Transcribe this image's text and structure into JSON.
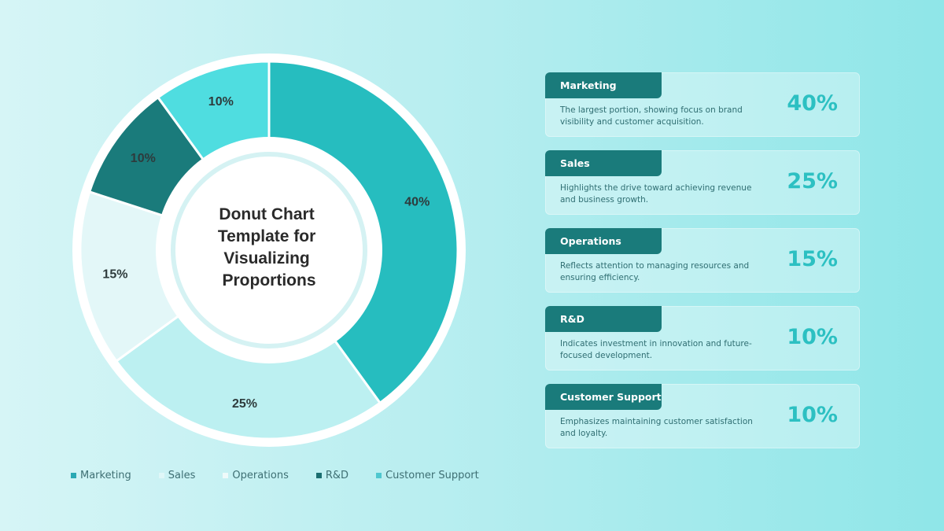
{
  "chart_data": {
    "type": "pie",
    "title": "Donut Chart Template for Visualizing Proportions",
    "title_lines": [
      "Donut Chart",
      "Template for",
      "Visualizing",
      "Proportions"
    ],
    "categories": [
      "Marketing",
      "Sales",
      "Operations",
      "R&D",
      "Customer Support"
    ],
    "values": [
      40,
      25,
      15,
      10,
      10
    ],
    "data_labels": [
      "40%",
      "25%",
      "15%",
      "10%",
      "10%"
    ],
    "colors": [
      "#26bdbf",
      "#bcf0f1",
      "#e3f7f8",
      "#1a7b7b",
      "#4fdde0"
    ],
    "donut": true,
    "legend": "bottom"
  },
  "legend": {
    "items": [
      {
        "label": "Marketing",
        "color": "#2aa9b3"
      },
      {
        "label": "Sales",
        "color": "#dff7f8"
      },
      {
        "label": "Operations",
        "color": "#eefafa"
      },
      {
        "label": "R&D",
        "color": "#1a6e70"
      },
      {
        "label": "Customer Support",
        "color": "#4fc7cf"
      }
    ]
  },
  "cards": [
    {
      "title": "Marketing",
      "description": "The largest portion, showing focus on brand visibility and customer acquisition.",
      "value": "40%"
    },
    {
      "title": "Sales",
      "description": "Highlights the drive toward achieving revenue and business growth.",
      "value": "25%"
    },
    {
      "title": "Operations",
      "description": "Reflects attention to managing resources and ensuring efficiency.",
      "value": "15%"
    },
    {
      "title": "R&D",
      "description": "Indicates investment in innovation and future-focused development.",
      "value": "10%"
    },
    {
      "title": "Customer Support",
      "description": "Emphasizes maintaining customer satisfaction and loyalty.",
      "value": "10%"
    }
  ]
}
